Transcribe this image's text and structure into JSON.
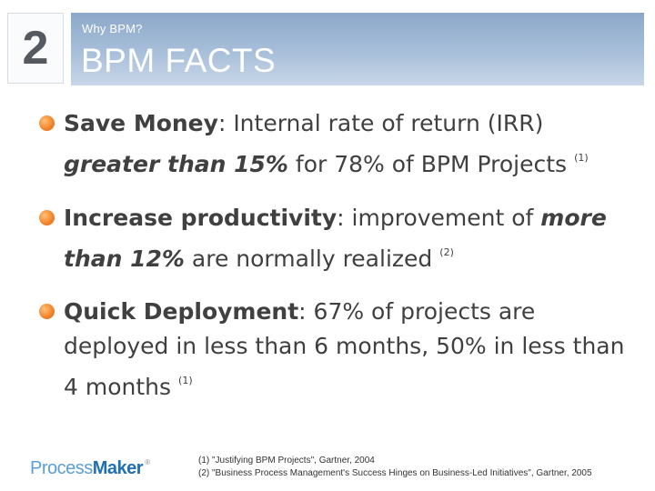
{
  "section": {
    "number": "2"
  },
  "header": {
    "kicker": "Why BPM?",
    "title": "BPM FACTS"
  },
  "bullets": [
    {
      "term": "Save Money",
      "sep": ": ",
      "text1": "Internal rate of return (IRR) ",
      "emph": "greater than 15%",
      "text2": " for 78% of BPM Projects",
      "ref": "(1)"
    },
    {
      "term": "Increase productivity",
      "sep": ": ",
      "text1": "improvement of ",
      "emph": "more than 12%",
      "text2": " are normally realized",
      "ref": "(2)"
    },
    {
      "term": "Quick Deployment",
      "sep": ": ",
      "text1": "67% of projects are deployed in less than 6 months, 50% in less than 4 months",
      "ref": "(1)"
    }
  ],
  "logo": {
    "part1": "Process",
    "part2": "Maker",
    "mark": "®"
  },
  "footnotes": [
    "(1) \"Justifying BPM Projects\", Gartner, 2004",
    "(2) \"Business Process Management's Success Hinges on Business-Led Initiatives\", Gartner, 2005"
  ],
  "colors": {
    "header": "#a5bdd8",
    "bullet": "#f3862c",
    "logo": "#1f6fb5"
  }
}
